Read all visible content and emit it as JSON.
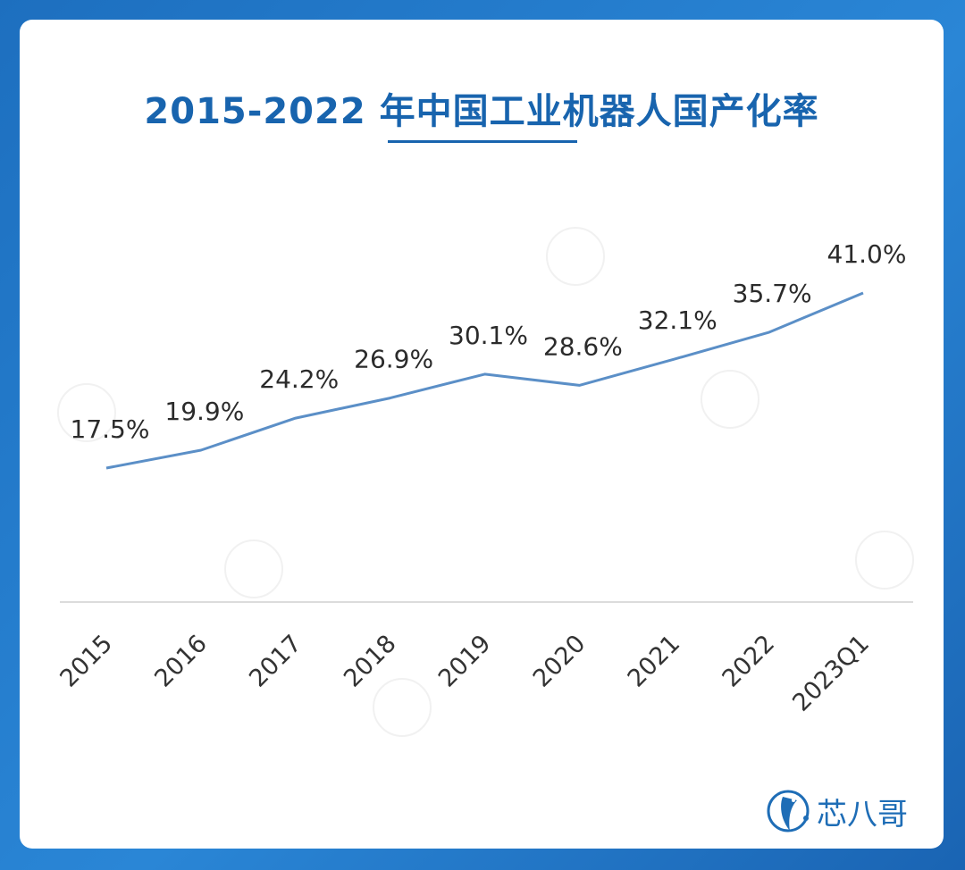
{
  "title": "2015-2022 年中国工业机器人国产化率",
  "brand": {
    "name": "芯八哥",
    "color": "#1e6db6"
  },
  "colors": {
    "line": "#5b8fc7",
    "title": "#1864ae",
    "axis": "#d0d0d0",
    "label": "#2b2b2b"
  },
  "chart_data": {
    "type": "line",
    "categories": [
      "2015",
      "2016",
      "2017",
      "2018",
      "2019",
      "2020",
      "2021",
      "2022",
      "2023Q1"
    ],
    "values": [
      17.5,
      19.9,
      24.2,
      26.9,
      30.1,
      28.6,
      32.1,
      35.7,
      41.0
    ],
    "data_labels": [
      "17.5%",
      "19.9%",
      "24.2%",
      "26.9%",
      "30.1%",
      "28.6%",
      "32.1%",
      "35.7%",
      "41.0%"
    ],
    "series": [
      {
        "values": [
          17.5,
          19.9,
          24.2,
          26.9,
          30.1,
          28.6,
          32.1,
          35.7,
          41.0
        ]
      }
    ],
    "xlabel": "",
    "ylabel": "",
    "grid": false,
    "legend": "none"
  }
}
